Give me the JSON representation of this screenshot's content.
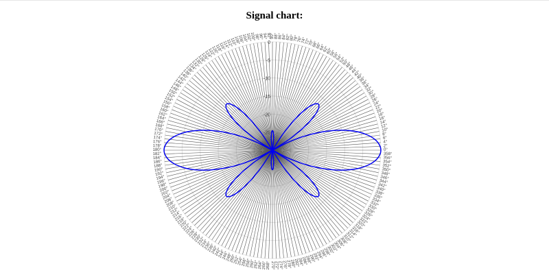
{
  "title": "Signal chart:",
  "chart_data": {
    "type": "polar-line",
    "title": "Signal chart:",
    "radial_range": [
      -30,
      0
    ],
    "radial_ticks": [
      "0",
      "-5",
      "-10",
      "-15",
      "-20",
      "-25"
    ],
    "radial_tick_values": [
      0,
      -5,
      -10,
      -15,
      -20,
      -25
    ],
    "angular_tick_step_deg": 2,
    "angular_direction": "counterclockwise",
    "zero_angle": "right",
    "grid": true,
    "series_color": "#0000ee",
    "theta_start_deg": 0,
    "theta_step_deg": 3,
    "values": [
      0,
      -0.4,
      -1.5,
      -3.3,
      -5.7,
      -8.8,
      -12.4,
      -16.4,
      -20.7,
      -25.3,
      -30,
      -24.4,
      -19.4,
      -15.4,
      -12.9,
      -12,
      -12.9,
      -15.4,
      -19.4,
      -24.4,
      -30,
      -30,
      -30,
      -30,
      -30,
      -30,
      -30,
      -29.2,
      -26.8,
      -25.2,
      -24.6,
      -25.2,
      -26.8,
      -29.2,
      -30,
      -30,
      -30,
      -30,
      -30,
      -30,
      -30,
      -24.4,
      -19.4,
      -15.4,
      -12.9,
      -12,
      -12.9,
      -15.4,
      -19.4,
      -24.4,
      -30,
      -25.3,
      -20.7,
      -16.4,
      -12.4,
      -8.8,
      -5.7,
      -3.3,
      -1.5,
      -0.4,
      0,
      -0.4,
      -1.5,
      -3.3,
      -5.7,
      -8.8,
      -12.4,
      -16.4,
      -20.7,
      -25.3,
      -30,
      -24.4,
      -19.4,
      -15.4,
      -12.9,
      -12,
      -12.9,
      -15.4,
      -19.4,
      -24.4,
      -30,
      -30,
      -30,
      -30,
      -30,
      -30,
      -30,
      -29.2,
      -26.8,
      -25.2,
      -24.6,
      -25.2,
      -26.8,
      -29.2,
      -30,
      -30,
      -30,
      -30,
      -30,
      -30,
      -30,
      -24.4,
      -19.4,
      -15.4,
      -12.9,
      -12,
      -12.9,
      -15.4,
      -19.4,
      -24.4,
      -30,
      -25.3,
      -20.7,
      -16.4,
      -12.4,
      -8.8,
      -5.7,
      -3.3,
      -1.5,
      -0.4
    ]
  }
}
